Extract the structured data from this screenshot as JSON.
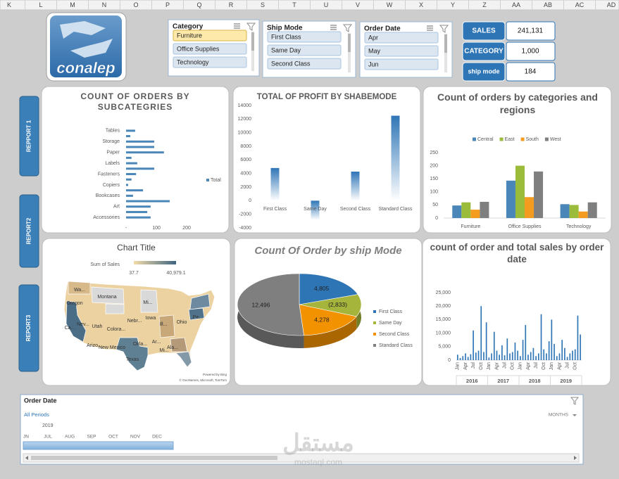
{
  "column_headers": [
    "K",
    "L",
    "M",
    "N",
    "O",
    "P",
    "Q",
    "R",
    "S",
    "T",
    "U",
    "V",
    "W",
    "X",
    "Y",
    "Z",
    "AA",
    "AB",
    "AC",
    "AD"
  ],
  "logo": {
    "text": "conalep"
  },
  "slicers": [
    {
      "title": "Category",
      "items": [
        "Furniture",
        "Office Supplies",
        "Technology"
      ]
    },
    {
      "title": "Ship Mode",
      "items": [
        "First Class",
        "Same Day",
        "Second Class"
      ]
    },
    {
      "title": "Order Date",
      "items": [
        "Apr",
        "May",
        "Jun"
      ]
    }
  ],
  "kpis": [
    {
      "label": "SALES",
      "value": "241,131"
    },
    {
      "label": "CATEGORY",
      "value": "1,000"
    },
    {
      "label": "ship mode",
      "value": "184"
    }
  ],
  "nav_buttons": [
    "REPPORT 1",
    "REPORT2",
    "REPORT3"
  ],
  "chart_data": [
    {
      "type": "bar",
      "orientation": "horizontal",
      "title": "COUNT OF ORDERS BY SUBCATEGRIES",
      "categories": [
        "Tables",
        null,
        "Storage",
        null,
        "Paper",
        null,
        "Labels",
        null,
        "Fasteners",
        null,
        "Copiers",
        null,
        "Bookcases",
        null,
        "Art",
        null,
        "Accessories"
      ],
      "series": [
        {
          "name": "Total",
          "color": "#4a86b8",
          "values": [
            30,
            14,
            93,
            93,
            125,
            18,
            37,
            93,
            33,
            18,
            7,
            56,
            23,
            144,
            81,
            70,
            81
          ]
        }
      ],
      "xlim": [
        0,
        230
      ],
      "xticks": [
        {
          "value": 0,
          "label": "-"
        },
        100,
        200
      ],
      "legend": "right"
    },
    {
      "type": "bar",
      "title": "TOTAL OF PROFIT BY SHABEMODE",
      "categories": [
        "First Class",
        "Same Day",
        "Second Class",
        "Standard Class"
      ],
      "values": [
        4805,
        -2833,
        4278,
        12496
      ],
      "color": "#2e75b6",
      "ylim": [
        -4000,
        14000
      ],
      "yticks": [
        -4000,
        -2000,
        0,
        2000,
        4000,
        6000,
        8000,
        10000,
        12000,
        14000
      ]
    },
    {
      "type": "bar",
      "title": "Count of orders by categories and regions",
      "categories": [
        "Furniture",
        "Office Supplies",
        "Technology"
      ],
      "series": [
        {
          "name": "Central",
          "color": "#4a86b8",
          "values": [
            48,
            143,
            53
          ]
        },
        {
          "name": "East",
          "color": "#9bbb3b",
          "values": [
            60,
            200,
            50
          ]
        },
        {
          "name": "South",
          "color": "#f39c1f",
          "values": [
            32,
            80,
            25
          ]
        },
        {
          "name": "West",
          "color": "#7f7f7f",
          "values": [
            62,
            178,
            60
          ]
        }
      ],
      "ylim": [
        0,
        250
      ],
      "yticks": [
        0,
        50,
        100,
        150,
        200,
        250
      ],
      "legend": "top"
    },
    {
      "type": "map",
      "title": "Chart Title",
      "legend_title": "Sum of Sales",
      "color_scale": [
        37.7,
        {
          "value": 40979.1,
          "label": "40,979.1"
        }
      ],
      "colors": [
        "#f3dcaa",
        "#3f6480"
      ],
      "region_labels": [
        "Wa...",
        "Oregon",
        "Montana",
        "Mi...",
        "Ca...",
        "Nev...",
        "Utah",
        "Colora...",
        "Nebr...",
        "Iowa",
        "Ill...",
        "Ohio",
        "Pe...",
        "Arizo...",
        "New Mexico",
        "Okla...",
        "Texas",
        "Ar...",
        "Mi...",
        "Ala..."
      ],
      "credits": [
        "Powered by Bing",
        "© GeoNames, Microsoft, TomTom"
      ]
    },
    {
      "type": "pie",
      "title": "Count Of Order by ship Mode",
      "categories": [
        "First Class",
        "Same Day",
        "Second Class",
        "Standard Class"
      ],
      "values": [
        4805,
        -2833,
        4278,
        12496
      ],
      "value_labels": [
        "4,805",
        "(2,833)",
        "4,278",
        "12,496"
      ],
      "colors": [
        "#2e75b6",
        "#a5b43a",
        "#f39200",
        "#7f7f7f"
      ],
      "legend": "right"
    },
    {
      "type": "bar",
      "title": "count of order and total sales by order date",
      "categories": [
        "Jan",
        null,
        null,
        "Apr",
        null,
        null,
        "Jul",
        null,
        null,
        "Oct",
        null,
        null,
        "Jan",
        null,
        null,
        "Apr",
        null,
        null,
        "Jul",
        null,
        null,
        "Oct",
        null,
        null,
        "Jan",
        null,
        null,
        "Apr",
        null,
        null,
        "Jul",
        null,
        null,
        "Oct",
        null,
        null,
        "Jan",
        null,
        null,
        "Apr",
        null,
        null,
        "Jul",
        null,
        null,
        "Oct",
        null,
        null
      ],
      "x_groups": [
        "2016",
        "2017",
        "2018",
        "2019"
      ],
      "values": [
        2000,
        800,
        1500,
        2500,
        1200,
        2200,
        11000,
        2800,
        3500,
        20000,
        3000,
        14000,
        1000,
        2500,
        10500,
        3500,
        2000,
        5500,
        1800,
        8000,
        2500,
        3000,
        6500,
        3500,
        1500,
        7500,
        13000,
        2000,
        3000,
        4500,
        1500,
        2500,
        17000,
        4000,
        2500,
        7000,
        15000,
        6000,
        1500,
        2500,
        7500,
        4500,
        1200,
        2500,
        3500,
        4000,
        16500,
        9500
      ],
      "color": "#2e75b6",
      "ylim": [
        0,
        25000
      ],
      "yticks": [
        0,
        {
          "value": 5000,
          "label": "5,000"
        },
        {
          "value": 10000,
          "label": "10,000"
        },
        {
          "value": 15000,
          "label": "15,000"
        },
        {
          "value": 20000,
          "label": "20,000"
        },
        {
          "value": 25000,
          "label": "25,000"
        }
      ]
    }
  ],
  "timeline": {
    "title": "Order Date",
    "period_label": "All Periods",
    "level": "MONTHS",
    "year": "2019",
    "months": [
      "JN",
      "JUL",
      "AUG",
      "SEP",
      "OCT",
      "NOV",
      "DEC"
    ]
  },
  "watermark": {
    "arabic": "مستقل",
    "latin": "mostaql.com"
  }
}
